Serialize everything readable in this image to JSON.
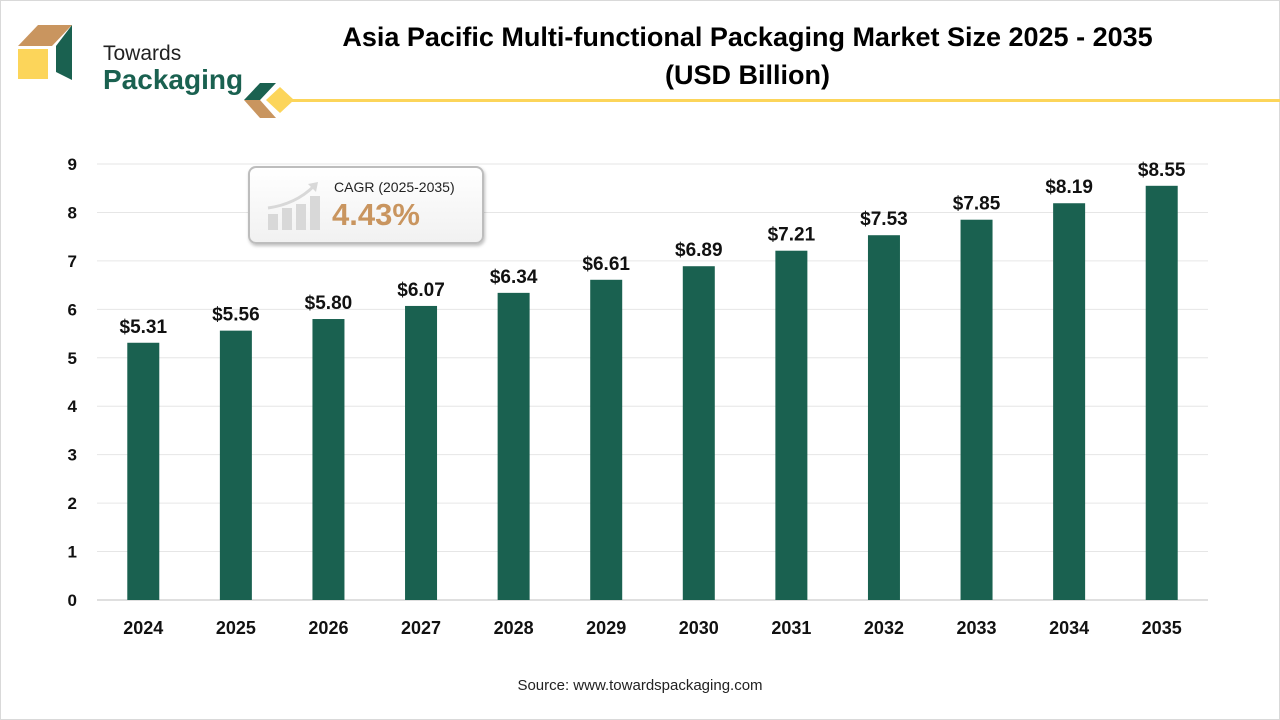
{
  "brand": {
    "line1": "Towards",
    "line2": "Packaging"
  },
  "colors": {
    "bar": "#1a6150",
    "accent": "#fcd55a",
    "tan": "#c9955f"
  },
  "cagr": {
    "label": "CAGR (2025-2035)",
    "value": "4.43%",
    "icon": "growth-chart-icon"
  },
  "source": "Source: www.towardspackaging.com",
  "chart_data": {
    "type": "bar",
    "title": "Asia Pacific Multi-functional Packaging Market Size 2025 - 2035 (USD Billion)",
    "title_lines": [
      "Asia Pacific Multi-functional Packaging Market Size 2025 - 2035",
      "(USD Billion)"
    ],
    "categories": [
      "2024",
      "2025",
      "2026",
      "2027",
      "2028",
      "2029",
      "2030",
      "2031",
      "2032",
      "2033",
      "2034",
      "2035"
    ],
    "values": [
      5.31,
      5.56,
      5.8,
      6.07,
      6.34,
      6.61,
      6.89,
      7.21,
      7.53,
      7.85,
      8.19,
      8.55
    ],
    "data_labels": [
      "$5.31",
      "$5.56",
      "$5.80",
      "$6.07",
      "$6.34",
      "$6.61",
      "$6.89",
      "$7.21",
      "$7.53",
      "$7.85",
      "$8.19",
      "$8.55"
    ],
    "ylim": [
      0,
      9
    ],
    "yticks": [
      "0",
      "1",
      "2",
      "3",
      "4",
      "5",
      "6",
      "7",
      "8",
      "9"
    ],
    "xlabel": "",
    "ylabel": "",
    "grid": true,
    "legend": "none"
  }
}
